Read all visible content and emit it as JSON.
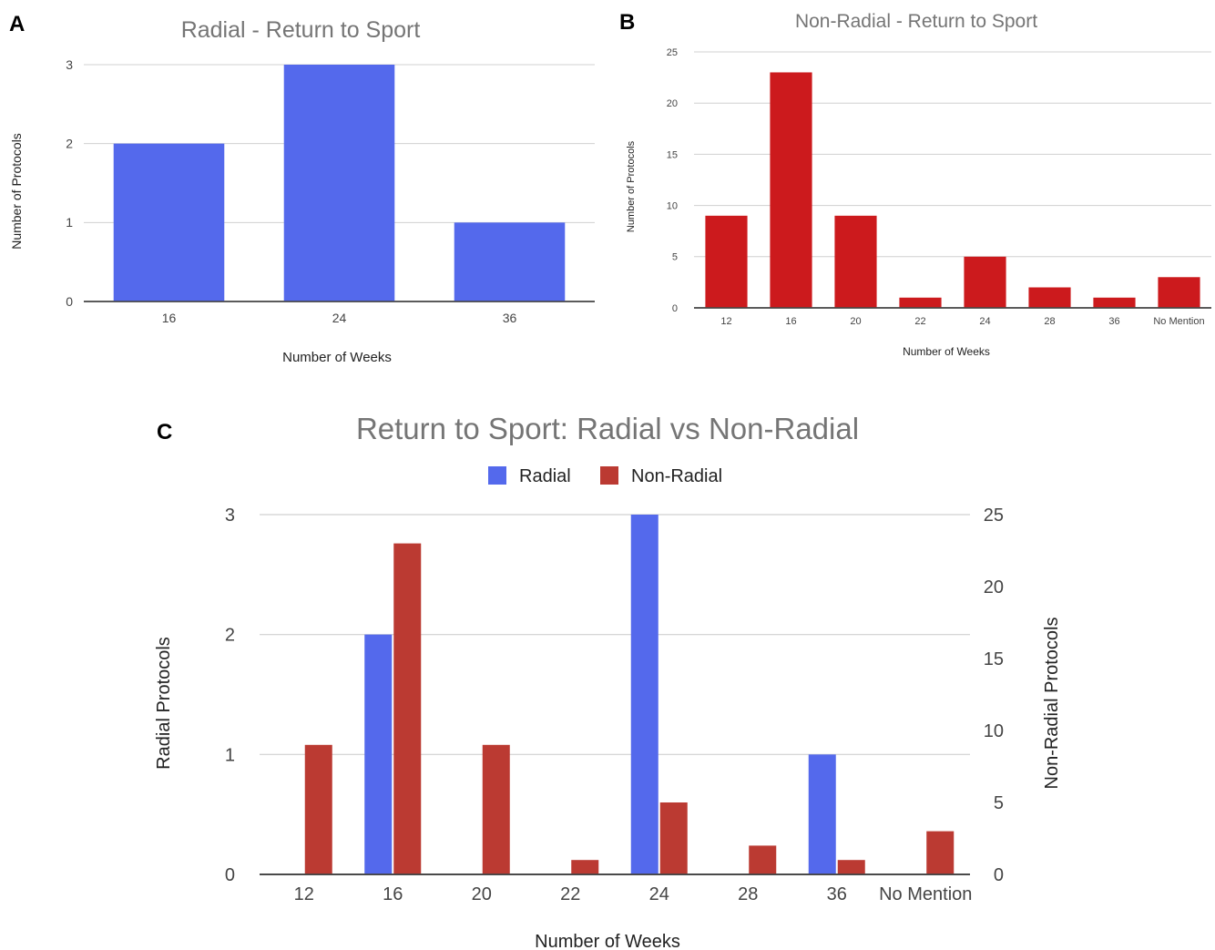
{
  "colors": {
    "radial": "#5469ec",
    "non_radial_b": "#cc1a1d",
    "non_radial_c": "#bb3a32",
    "grid": "#d0d0d0",
    "axis": "#444444"
  },
  "chart_data": [
    {
      "id": "A",
      "panel_label": "A",
      "type": "bar",
      "title": "Radial - Return to Sport",
      "xlabel": "Number of Weeks",
      "ylabel": "Number of Protocols",
      "categories": [
        "16",
        "24",
        "36"
      ],
      "values": [
        2,
        3,
        1
      ],
      "ylim": [
        0,
        3
      ],
      "yticks": [
        "0",
        "1",
        "2",
        "3"
      ],
      "grid": true
    },
    {
      "id": "B",
      "panel_label": "B",
      "type": "bar",
      "title": "Non-Radial - Return to Sport",
      "xlabel": "Number of Weeks",
      "ylabel": "Number of Protocols",
      "categories": [
        "12",
        "16",
        "20",
        "22",
        "24",
        "28",
        "36",
        "No Mention"
      ],
      "values": [
        9,
        23,
        9,
        1,
        5,
        2,
        1,
        3
      ],
      "ylim": [
        0,
        25
      ],
      "yticks": [
        "0",
        "5",
        "10",
        "15",
        "20",
        "25"
      ],
      "grid": true
    },
    {
      "id": "C",
      "panel_label": "C",
      "type": "bar",
      "title": "Return to Sport: Radial vs Non-Radial",
      "xlabel": "Number of Weeks",
      "ylabel_left": "Radial Protocols",
      "ylabel_right": "Non-Radial Protocols",
      "categories": [
        "12",
        "16",
        "20",
        "22",
        "24",
        "28",
        "36",
        "No Mention"
      ],
      "legend_position": "top",
      "series": [
        {
          "name": "Radial",
          "axis": "left",
          "values": [
            0,
            2,
            0,
            0,
            3,
            0,
            1,
            0
          ]
        },
        {
          "name": "Non-Radial",
          "axis": "right",
          "values": [
            9,
            23,
            9,
            1,
            5,
            2,
            1,
            3
          ]
        }
      ],
      "ylim_left": [
        0,
        3
      ],
      "ylim_right": [
        0,
        25
      ],
      "yticks_left": [
        "0",
        "1",
        "2",
        "3"
      ],
      "yticks_right": [
        "0",
        "5",
        "10",
        "15",
        "20",
        "25"
      ],
      "grid": true
    }
  ]
}
